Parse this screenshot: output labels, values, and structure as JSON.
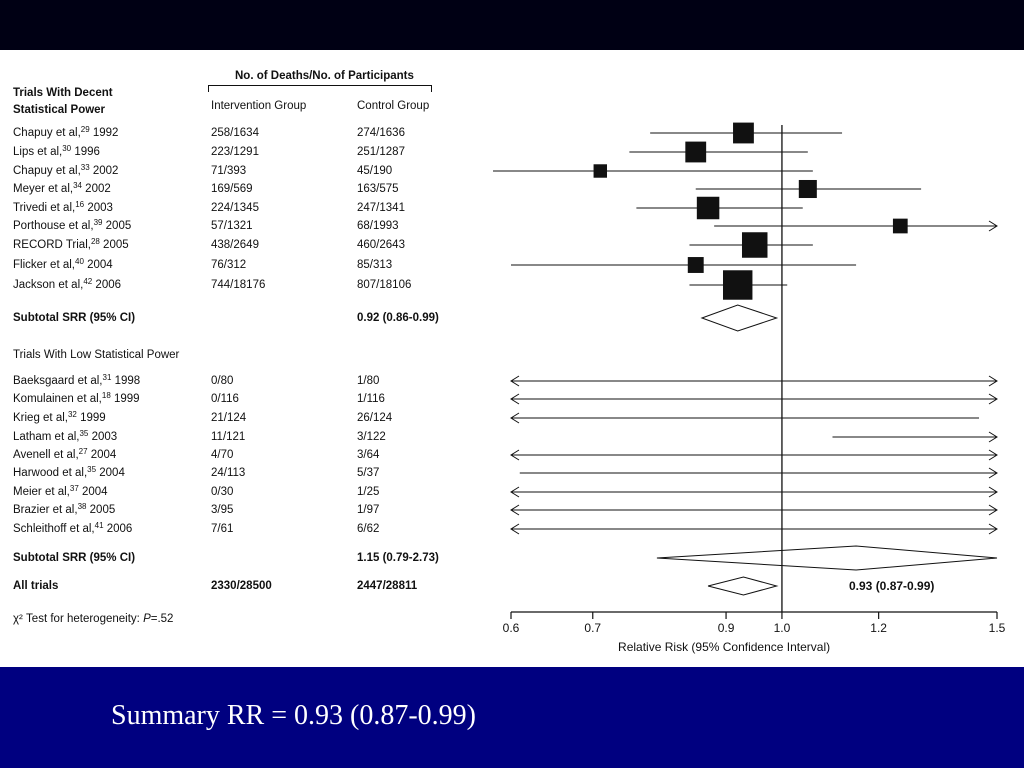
{
  "caption": "Summary RR = 0.93 (0.87-0.99)",
  "table": {
    "header_group": "No. of Deaths/No. of Participants",
    "section1_title": [
      "Trials With Decent",
      "Statistical Power"
    ],
    "col_intervention": "Intervention Group",
    "col_control": "Control Group",
    "section2_title": "Trials With Low Statistical Power",
    "heterogeneity": {
      "prefix": "χ² Test for heterogeneity:",
      "p_label": "P",
      "p_value": "=.52"
    }
  },
  "chart_data": {
    "type": "forest",
    "xlabel": "Relative Risk (95% Confidence Interval)",
    "xticks": [
      0.6,
      0.7,
      0.9,
      1.0,
      1.2,
      1.5
    ],
    "xscale": "log",
    "xlim": [
      0.6,
      1.5
    ],
    "reference_line": 1.0,
    "rows": [
      {
        "kind": "study",
        "label": "Chapuy et al,",
        "ref": "29",
        "year": "1992",
        "intervention": "258/1634",
        "control": "274/1636",
        "rr": 0.93,
        "lo": 0.78,
        "hi": 1.12,
        "weight": 6
      },
      {
        "kind": "study",
        "label": "Lips et al,",
        "ref": "30",
        "year": "1996",
        "intervention": "223/1291",
        "control": "251/1287",
        "rr": 0.85,
        "lo": 0.75,
        "hi": 1.05,
        "weight": 6
      },
      {
        "kind": "study",
        "label": "Chapuy et al,",
        "ref": "33",
        "year": "2002",
        "intervention": "71/393",
        "control": "45/190",
        "rr": 0.71,
        "lo": 0.58,
        "hi": 1.06,
        "weight": 2.5
      },
      {
        "kind": "study",
        "label": "Meyer et al,",
        "ref": "34",
        "year": "2002",
        "intervention": "169/569",
        "control": "163/575",
        "rr": 1.05,
        "lo": 0.85,
        "hi": 1.3,
        "weight": 4.5
      },
      {
        "kind": "study",
        "label": "Trivedi et al,",
        "ref": "16",
        "year": "2003",
        "intervention": "224/1345",
        "control": "247/1341",
        "rr": 0.87,
        "lo": 0.76,
        "hi": 1.04,
        "weight": 7
      },
      {
        "kind": "study",
        "label": "Porthouse et al,",
        "ref": "39",
        "year": "2005",
        "intervention": "57/1321",
        "control": "68/1993",
        "rr": 1.25,
        "lo": 0.88,
        "hi": 1.5,
        "arrow_hi": true,
        "weight": 3
      },
      {
        "kind": "study",
        "label": "RECORD Trial,",
        "ref": "28",
        "year": "2005",
        "intervention": "438/2649",
        "control": "460/2643",
        "rr": 0.95,
        "lo": 0.84,
        "hi": 1.06,
        "weight": 9
      },
      {
        "kind": "study",
        "label": "Flicker et al,",
        "ref": "40",
        "year": "2004",
        "intervention": "76/312",
        "control": "85/313",
        "rr": 0.85,
        "lo": 0.6,
        "hi": 1.15,
        "weight": 3.5
      },
      {
        "kind": "study",
        "label": "Jackson et al,",
        "ref": "42",
        "year": "2006",
        "intervention": "744/18176",
        "control": "807/18106",
        "rr": 0.92,
        "lo": 0.84,
        "hi": 1.01,
        "weight": 12
      },
      {
        "kind": "subtotal",
        "label": "Subtotal SRR (95% CI)",
        "intervention": "",
        "control": "0.92 (0.86-0.99)",
        "rr": 0.92,
        "lo": 0.86,
        "hi": 0.99
      },
      {
        "kind": "section",
        "label": "Trials With Low Statistical Power"
      },
      {
        "kind": "study",
        "label": "Baeksgaard et al,",
        "ref": "31",
        "year": "1998",
        "intervention": "0/80",
        "control": "1/80",
        "lo": 0.6,
        "hi": 1.5,
        "arrow_lo": true,
        "arrow_hi": true
      },
      {
        "kind": "study",
        "label": "Komulainen et al,",
        "ref": "18",
        "year": "1999",
        "intervention": "0/116",
        "control": "1/116",
        "lo": 0.6,
        "hi": 1.5,
        "arrow_lo": true,
        "arrow_hi": true
      },
      {
        "kind": "study",
        "label": "Krieg et al,",
        "ref": "32",
        "year": "1999",
        "intervention": "21/124",
        "control": "26/124",
        "lo": 0.6,
        "hi": 1.45,
        "arrow_lo": true
      },
      {
        "kind": "study",
        "label": "Latham et al,",
        "ref": "35",
        "year": "2003",
        "intervention": "11/121",
        "control": "3/122",
        "lo": 1.1,
        "hi": 1.5,
        "arrow_hi": true
      },
      {
        "kind": "study",
        "label": "Avenell et al,",
        "ref": "27",
        "year": "2004",
        "intervention": "4/70",
        "control": "3/64",
        "lo": 0.6,
        "hi": 1.5,
        "arrow_lo": true,
        "arrow_hi": true
      },
      {
        "kind": "study",
        "label": "Harwood et al,",
        "ref": "35",
        "year": "2004",
        "intervention": "24/113",
        "control": "5/37",
        "lo": 0.61,
        "hi": 1.5,
        "arrow_hi": true
      },
      {
        "kind": "study",
        "label": "Meier et al,",
        "ref": "37",
        "year": "2004",
        "intervention": "0/30",
        "control": "1/25",
        "lo": 0.6,
        "hi": 1.5,
        "arrow_lo": true,
        "arrow_hi": true
      },
      {
        "kind": "study",
        "label": "Brazier et al,",
        "ref": "38",
        "year": "2005",
        "intervention": "3/95",
        "control": "1/97",
        "lo": 0.6,
        "hi": 1.5,
        "arrow_lo": true,
        "arrow_hi": true
      },
      {
        "kind": "study",
        "label": "Schleithoff et al,",
        "ref": "41",
        "year": "2006",
        "intervention": "7/61",
        "control": "6/62",
        "lo": 0.6,
        "hi": 1.5,
        "arrow_lo": true,
        "arrow_hi": true
      },
      {
        "kind": "subtotal",
        "label": "Subtotal SRR (95% CI)",
        "intervention": "",
        "control": "1.15 (0.79-2.73)",
        "rr": 1.15,
        "lo": 0.79,
        "hi": 1.5
      },
      {
        "kind": "total",
        "label": "All trials",
        "intervention": "2330/28500",
        "control": "2447/28811",
        "rr": 0.93,
        "lo": 0.87,
        "hi": 0.99,
        "annotation": "0.93 (0.87-0.99)"
      }
    ]
  },
  "colors": {
    "top_band": "#000014",
    "bottom_band": "#000080",
    "panel": "#ffffff",
    "ink": "#111111"
  }
}
